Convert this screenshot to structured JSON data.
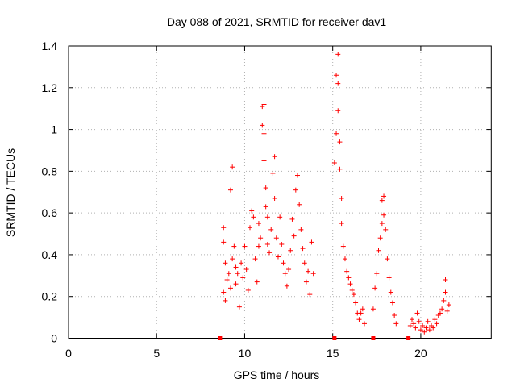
{
  "chart_data": {
    "type": "scatter",
    "title": "Day 088 of 2021, SRMTID for receiver dav1",
    "xlabel": "GPS time / hours",
    "ylabel": "SRMTID / TECUs",
    "xlim": [
      0,
      24
    ],
    "ylim": [
      0,
      1.4
    ],
    "x_ticks": [
      0,
      5,
      10,
      15,
      20
    ],
    "x_tick_labels": [
      "0",
      "5",
      "10",
      "15",
      "20"
    ],
    "y_ticks": [
      0,
      0.2,
      0.4,
      0.6,
      0.8,
      1.0,
      1.2,
      1.4
    ],
    "y_tick_labels": [
      "0",
      "0.2",
      "0.4",
      "0.6",
      "0.8",
      "1",
      "1.2",
      "1.4"
    ],
    "grid": true,
    "marker": "+",
    "color": "#ff0000",
    "zero_line_markers_x": [
      8.6,
      15.1,
      17.3,
      19.3
    ],
    "series": [
      {
        "name": "dav1",
        "points": [
          [
            8.8,
            0.53
          ],
          [
            8.8,
            0.46
          ],
          [
            8.9,
            0.36
          ],
          [
            8.8,
            0.22
          ],
          [
            9.0,
            0.28
          ],
          [
            8.9,
            0.18
          ],
          [
            9.1,
            0.31
          ],
          [
            9.2,
            0.24
          ],
          [
            9.3,
            0.82
          ],
          [
            9.2,
            0.71
          ],
          [
            9.4,
            0.44
          ],
          [
            9.3,
            0.38
          ],
          [
            9.5,
            0.34
          ],
          [
            9.5,
            0.26
          ],
          [
            9.6,
            0.31
          ],
          [
            9.7,
            0.15
          ],
          [
            9.8,
            0.36
          ],
          [
            9.9,
            0.29
          ],
          [
            10.0,
            0.44
          ],
          [
            10.1,
            0.33
          ],
          [
            10.2,
            0.23
          ],
          [
            10.3,
            0.53
          ],
          [
            10.4,
            0.61
          ],
          [
            10.5,
            0.58
          ],
          [
            10.6,
            0.38
          ],
          [
            10.7,
            0.27
          ],
          [
            10.8,
            0.44
          ],
          [
            10.8,
            0.55
          ],
          [
            10.9,
            0.48
          ],
          [
            11.0,
            1.11
          ],
          [
            11.0,
            1.02
          ],
          [
            11.1,
            1.12
          ],
          [
            11.1,
            0.98
          ],
          [
            11.1,
            0.85
          ],
          [
            11.2,
            0.72
          ],
          [
            11.2,
            0.63
          ],
          [
            11.3,
            0.58
          ],
          [
            11.3,
            0.45
          ],
          [
            11.4,
            0.41
          ],
          [
            11.5,
            0.52
          ],
          [
            11.6,
            0.79
          ],
          [
            11.7,
            0.87
          ],
          [
            11.7,
            0.67
          ],
          [
            11.8,
            0.48
          ],
          [
            11.9,
            0.39
          ],
          [
            12.0,
            0.58
          ],
          [
            12.1,
            0.45
          ],
          [
            12.2,
            0.36
          ],
          [
            12.3,
            0.31
          ],
          [
            12.4,
            0.25
          ],
          [
            12.5,
            0.33
          ],
          [
            12.6,
            0.42
          ],
          [
            12.7,
            0.57
          ],
          [
            12.8,
            0.49
          ],
          [
            12.9,
            0.71
          ],
          [
            13.0,
            0.78
          ],
          [
            13.1,
            0.64
          ],
          [
            13.2,
            0.52
          ],
          [
            13.3,
            0.43
          ],
          [
            13.4,
            0.36
          ],
          [
            13.5,
            0.27
          ],
          [
            13.6,
            0.32
          ],
          [
            13.7,
            0.21
          ],
          [
            13.8,
            0.46
          ],
          [
            13.9,
            0.31
          ],
          [
            15.1,
            0.84
          ],
          [
            15.2,
            0.98
          ],
          [
            15.2,
            1.26
          ],
          [
            15.3,
            1.36
          ],
          [
            15.3,
            1.22
          ],
          [
            15.3,
            1.09
          ],
          [
            15.4,
            0.94
          ],
          [
            15.4,
            0.81
          ],
          [
            15.5,
            0.67
          ],
          [
            15.5,
            0.55
          ],
          [
            15.6,
            0.44
          ],
          [
            15.7,
            0.38
          ],
          [
            15.8,
            0.32
          ],
          [
            15.9,
            0.29
          ],
          [
            16.0,
            0.26
          ],
          [
            16.1,
            0.23
          ],
          [
            16.2,
            0.21
          ],
          [
            16.3,
            0.17
          ],
          [
            16.4,
            0.12
          ],
          [
            16.5,
            0.09
          ],
          [
            16.6,
            0.12
          ],
          [
            16.7,
            0.14
          ],
          [
            16.8,
            0.07
          ],
          [
            17.3,
            0.14
          ],
          [
            17.4,
            0.24
          ],
          [
            17.5,
            0.31
          ],
          [
            17.6,
            0.42
          ],
          [
            17.7,
            0.48
          ],
          [
            17.8,
            0.55
          ],
          [
            17.8,
            0.66
          ],
          [
            17.9,
            0.59
          ],
          [
            17.9,
            0.68
          ],
          [
            18.0,
            0.52
          ],
          [
            18.1,
            0.38
          ],
          [
            18.2,
            0.29
          ],
          [
            18.3,
            0.22
          ],
          [
            18.4,
            0.17
          ],
          [
            18.5,
            0.11
          ],
          [
            18.6,
            0.07
          ],
          [
            19.4,
            0.06
          ],
          [
            19.5,
            0.09
          ],
          [
            19.6,
            0.07
          ],
          [
            19.7,
            0.05
          ],
          [
            19.8,
            0.12
          ],
          [
            19.9,
            0.08
          ],
          [
            20.0,
            0.04
          ],
          [
            20.1,
            0.06
          ],
          [
            20.2,
            0.03
          ],
          [
            20.3,
            0.05
          ],
          [
            20.4,
            0.08
          ],
          [
            20.5,
            0.04
          ],
          [
            20.6,
            0.06
          ],
          [
            20.7,
            0.05
          ],
          [
            20.8,
            0.09
          ],
          [
            20.9,
            0.07
          ],
          [
            21.0,
            0.11
          ],
          [
            21.1,
            0.12
          ],
          [
            21.2,
            0.14
          ],
          [
            21.3,
            0.18
          ],
          [
            21.4,
            0.22
          ],
          [
            21.4,
            0.28
          ],
          [
            21.5,
            0.13
          ],
          [
            21.6,
            0.16
          ]
        ]
      }
    ]
  }
}
